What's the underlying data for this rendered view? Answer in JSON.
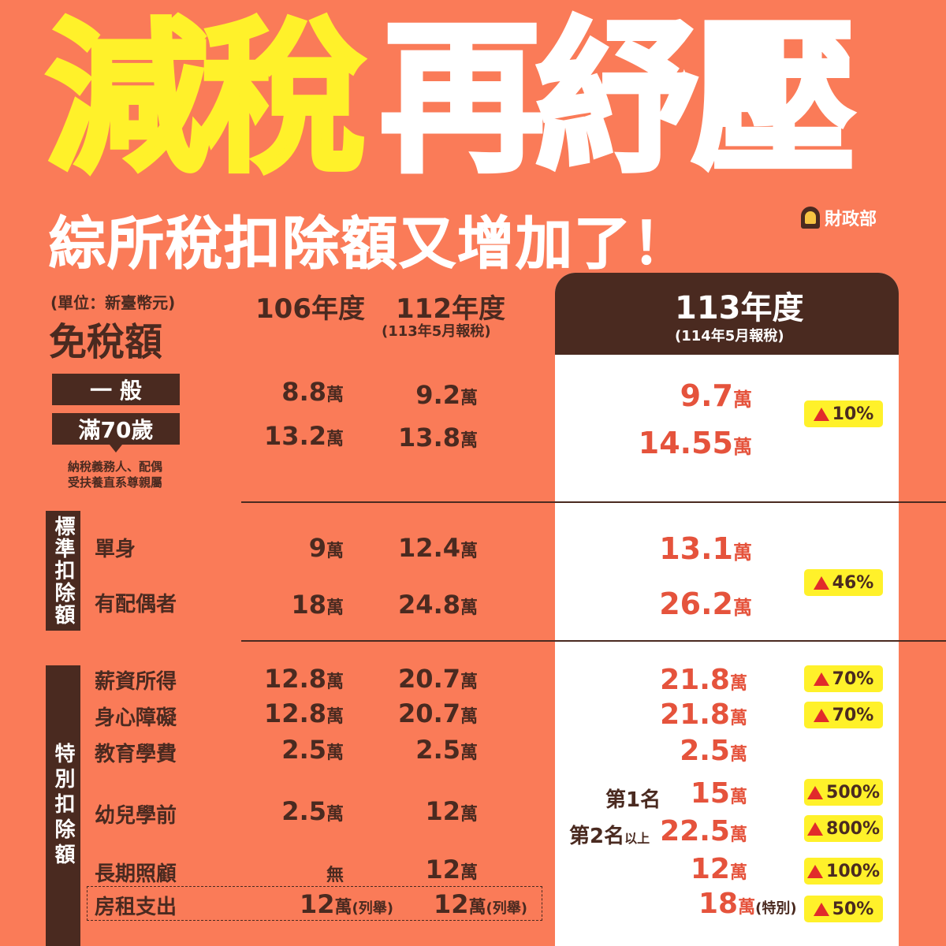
{
  "title": {
    "highlight": "減稅",
    "rest": "再紓壓"
  },
  "subtitle": "綜所稅扣除額又增加了！",
  "publisher": "財政部",
  "unit_note": "(單位：新臺幣元)",
  "section_exemption": "免稅額",
  "columns": {
    "y106": "106年度",
    "y112": "112年度",
    "y112_sub": "(113年5月報稅)",
    "y113": "113年度",
    "y113_sub": "(114年5月報稅)"
  },
  "exemption": {
    "general_label": "一 般",
    "senior_label": "滿70歲",
    "senior_note": "納稅義務人、配偶\n受扶養直系尊親屬",
    "general": {
      "y106": "8.8",
      "y112": "9.2",
      "y113": "9.7"
    },
    "senior": {
      "y106": "13.2",
      "y112": "13.8",
      "y113": "14.55"
    },
    "increase": "10%"
  },
  "standard": {
    "section_label": "標準扣除額",
    "single_label": "單身",
    "married_label": "有配偶者",
    "single": {
      "y106": "9",
      "y112": "12.4",
      "y113": "13.1"
    },
    "married": {
      "y106": "18",
      "y112": "24.8",
      "y113": "26.2"
    },
    "increase": "46%"
  },
  "special": {
    "section_label": "特別扣除額",
    "salary": {
      "label": "薪資所得",
      "y106": "12.8",
      "y112": "20.7",
      "y113": "21.8",
      "increase": "70%"
    },
    "disability": {
      "label": "身心障礙",
      "y106": "12.8",
      "y112": "20.7",
      "y113": "21.8",
      "increase": "70%"
    },
    "education": {
      "label": "教育學費",
      "y106": "2.5",
      "y112": "2.5",
      "y113": "2.5"
    },
    "preschool": {
      "label": "幼兒學前",
      "y106": "2.5",
      "y112": "12",
      "first_label": "第1名",
      "first_value": "15",
      "first_increase": "500%",
      "second_label": "第2名",
      "second_suffix": "以上",
      "second_value": "22.5",
      "second_increase": "800%"
    },
    "longterm": {
      "label": "長期照顧",
      "y106": "無",
      "y112": "12",
      "y113": "12",
      "increase": "100%"
    },
    "rent": {
      "label": "房租支出",
      "y106": "12",
      "y112": "12",
      "y113": "18",
      "note_itemized": "(列舉)",
      "note_special": "(特別)",
      "increase": "50%"
    }
  },
  "unit_wan": "萬"
}
